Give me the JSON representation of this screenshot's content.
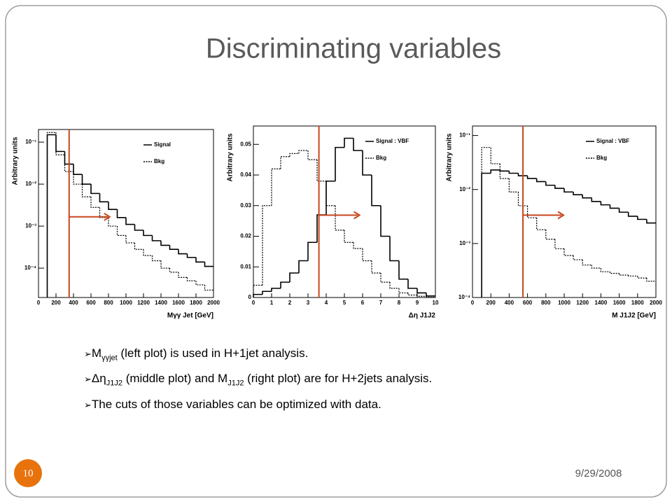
{
  "title": "Discriminating variables",
  "chart_data": [
    {
      "type": "histogram",
      "y_label": "Arbitrary units",
      "x_label": "Mγγ Jet [GeV]",
      "log_y": true,
      "legend": "upper right",
      "xlim": [
        0,
        2000
      ],
      "xticks": [
        0,
        200,
        400,
        600,
        800,
        1000,
        1200,
        1400,
        1600,
        1800,
        2000
      ],
      "ylim": [
        2e-05,
        0.2
      ],
      "yticks": [
        {
          "value": 0.1,
          "label": "10⁻¹"
        },
        {
          "value": 0.01,
          "label": "10⁻²"
        },
        {
          "value": 0.001,
          "label": "10⁻³"
        },
        {
          "value": 0.0001,
          "label": "10⁻⁴"
        }
      ],
      "cut": 350,
      "cut_color": "#c8461c",
      "bins": [
        100,
        200,
        300,
        400,
        500,
        600,
        700,
        800,
        900,
        1000,
        1100,
        1200,
        1300,
        1400,
        1500,
        1600,
        1700,
        1800,
        1900,
        2000
      ],
      "series": [
        {
          "name": "Signal",
          "color": "#000000",
          "values": [
            0.15,
            0.06,
            0.03,
            0.017,
            0.01,
            0.006,
            0.0038,
            0.0025,
            0.0016,
            0.0011,
            0.0008,
            0.0006,
            0.00045,
            0.00035,
            0.00028,
            0.00022,
            0.00018,
            0.00014,
            0.00011
          ]
        },
        {
          "name": "Bkg",
          "color": "#000000",
          "dashed": true,
          "values": [
            0.17,
            0.05,
            0.02,
            0.01,
            0.005,
            0.0028,
            0.0016,
            0.001,
            0.0006,
            0.0004,
            0.00028,
            0.0002,
            0.00015,
            0.0001,
            8e-05,
            6e-05,
            5e-05,
            4e-05,
            3e-05
          ]
        }
      ]
    },
    {
      "type": "histogram",
      "y_label": "Arbitrary units",
      "x_label": "Δη J1J2",
      "log_y": false,
      "legend": "upper right",
      "xlim": [
        0,
        10
      ],
      "xticks": [
        0,
        1,
        2,
        3,
        4,
        5,
        6,
        7,
        8,
        9,
        10
      ],
      "ylim": [
        0,
        0.056
      ],
      "yticks": [
        0,
        0.01,
        0.02,
        0.03,
        0.04,
        0.05
      ],
      "cut": 3.6,
      "cut_color": "#c8461c",
      "bins": [
        0,
        0.5,
        1,
        1.5,
        2,
        2.5,
        3,
        3.5,
        4,
        4.5,
        5,
        5.5,
        6,
        6.5,
        7,
        7.5,
        8,
        8.5,
        9,
        9.5,
        10
      ],
      "series": [
        {
          "name": "Signal : VBF",
          "color": "#000000",
          "values": [
            0.001,
            0.002,
            0.003,
            0.005,
            0.008,
            0.012,
            0.018,
            0.027,
            0.038,
            0.049,
            0.052,
            0.048,
            0.04,
            0.03,
            0.02,
            0.012,
            0.006,
            0.003,
            0.0015,
            0.0005
          ]
        },
        {
          "name": "Bkg",
          "color": "#000000",
          "dashed": true,
          "values": [
            0.004,
            0.03,
            0.042,
            0.046,
            0.047,
            0.048,
            0.045,
            0.038,
            0.03,
            0.022,
            0.018,
            0.016,
            0.012,
            0.008,
            0.005,
            0.003,
            0.0015,
            0.0008,
            0.0004,
            0.0001
          ]
        }
      ]
    },
    {
      "type": "histogram",
      "y_label": "Arbitrary units",
      "x_label": "M J1J2 [GeV]",
      "log_y": true,
      "legend": "upper right",
      "xlim": [
        0,
        2000
      ],
      "xticks": [
        0,
        200,
        400,
        600,
        800,
        1000,
        1200,
        1400,
        1600,
        1800,
        2000
      ],
      "ylim": [
        0.0001,
        0.15
      ],
      "yticks": [
        {
          "value": 0.1,
          "label": "10⁻¹"
        },
        {
          "value": 0.01,
          "label": "10⁻²"
        },
        {
          "value": 0.001,
          "label": "10⁻³"
        },
        {
          "value": 0.0001,
          "label": "10⁻⁴"
        }
      ],
      "cut": 550,
      "cut_color": "#c8461c",
      "bins": [
        100,
        200,
        300,
        400,
        500,
        600,
        700,
        800,
        900,
        1000,
        1100,
        1200,
        1300,
        1400,
        1500,
        1600,
        1700,
        1800,
        1900,
        2000
      ],
      "series": [
        {
          "name": "Signal : VBF",
          "color": "#000000",
          "values": [
            0.02,
            0.023,
            0.022,
            0.02,
            0.018,
            0.016,
            0.014,
            0.012,
            0.0105,
            0.009,
            0.008,
            0.007,
            0.006,
            0.0052,
            0.0045,
            0.0038,
            0.0032,
            0.0028,
            0.0024
          ]
        },
        {
          "name": "Bkg",
          "color": "#000000",
          "dashed": true,
          "values": [
            0.06,
            0.03,
            0.016,
            0.009,
            0.005,
            0.003,
            0.0018,
            0.0012,
            0.0008,
            0.0006,
            0.0005,
            0.0004,
            0.00035,
            0.0003,
            0.00028,
            0.00026,
            0.00025,
            0.00023,
            0.0002
          ]
        }
      ]
    }
  ],
  "bullets": [
    [
      "M",
      "γγjet",
      " (left plot) is used in H+1jet analysis."
    ],
    [
      "Δη",
      "J1J2",
      "  (middle plot) and M",
      "J1J2",
      "  (right plot) are for H+2jets analysis."
    ],
    [
      "The cuts of those variables can be optimized with data."
    ]
  ],
  "slide_number": "10",
  "date": "9/29/2008"
}
